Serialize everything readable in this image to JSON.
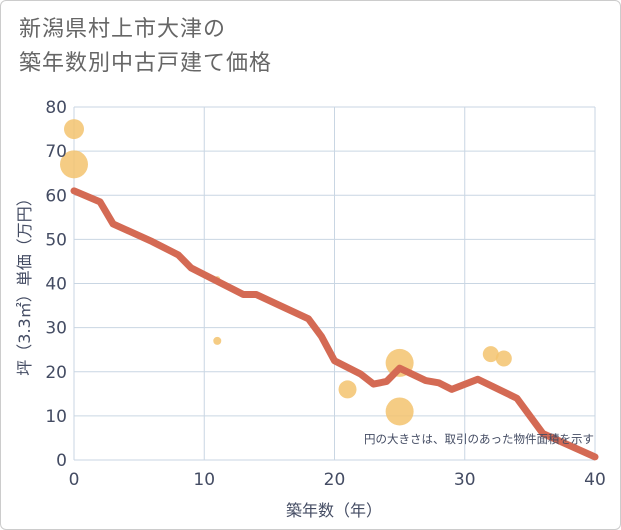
{
  "chart_data": {
    "type": "scatter",
    "title": [
      "新潟県村上市大津の",
      "築年数別中古戸建て価格"
    ],
    "xlabel": "築年数（年）",
    "ylabel": "坪（3.3㎡）単価（万円）",
    "xlim": [
      0,
      40
    ],
    "ylim": [
      0,
      80
    ],
    "x_ticks": [
      0,
      10,
      20,
      30,
      40
    ],
    "y_ticks": [
      0,
      10,
      20,
      30,
      40,
      50,
      60,
      70,
      80
    ],
    "grid": true,
    "annotation": "円の大きさは、取引のあった物件面積を示す",
    "colors": {
      "bubble": "#f3c36f",
      "trend": "#d46a54",
      "grid": "#c9d6e3"
    },
    "bubbles": [
      {
        "x": 0,
        "y": 75,
        "size": 10
      },
      {
        "x": 0,
        "y": 67,
        "size": 14
      },
      {
        "x": 11,
        "y": 41,
        "size": 3
      },
      {
        "x": 11,
        "y": 27,
        "size": 4
      },
      {
        "x": 21,
        "y": 16,
        "size": 9
      },
      {
        "x": 25,
        "y": 22,
        "size": 14
      },
      {
        "x": 25,
        "y": 11,
        "size": 14
      },
      {
        "x": 32,
        "y": 24,
        "size": 8
      },
      {
        "x": 33,
        "y": 23,
        "size": 8
      }
    ],
    "trend_line": {
      "x": [
        0,
        2,
        3,
        6,
        8,
        9,
        13,
        14,
        18,
        19,
        20,
        22,
        23,
        24,
        25,
        27,
        28,
        29,
        31,
        34,
        36,
        40
      ],
      "y": [
        61,
        58.5,
        53.5,
        49.5,
        46.5,
        43.5,
        37.5,
        37.5,
        32,
        28,
        22.5,
        19.5,
        17.2,
        17.8,
        20.8,
        18,
        17.5,
        16,
        18.3,
        14,
        6,
        0.7
      ]
    }
  }
}
